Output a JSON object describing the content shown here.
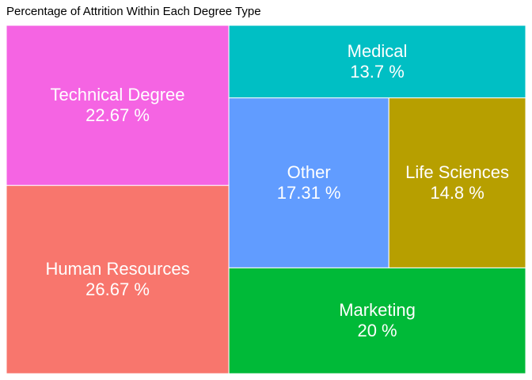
{
  "chart_data": {
    "type": "treemap",
    "title": "Percentage of Attrition Within Each Degree Type",
    "unit": "%",
    "items": [
      {
        "name": "Human Resources",
        "value": 26.67,
        "label": "26.67 %",
        "color": "#F8766D"
      },
      {
        "name": "Technical Degree",
        "value": 22.67,
        "label": "22.67 %",
        "color": "#F564E3"
      },
      {
        "name": "Marketing",
        "value": 20,
        "label": "20 %",
        "color": "#00BA38"
      },
      {
        "name": "Other",
        "value": 17.31,
        "label": "17.31 %",
        "color": "#619CFF"
      },
      {
        "name": "Life Sciences",
        "value": 14.8,
        "label": "14.8 %",
        "color": "#B79F00"
      },
      {
        "name": "Medical",
        "value": 13.7,
        "label": "13.7 %",
        "color": "#00BFC4"
      }
    ]
  }
}
